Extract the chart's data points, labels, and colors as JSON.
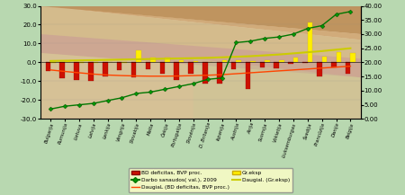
{
  "countries": [
    "Bulgarija",
    "Rumunija",
    "Lietuva",
    "Latvija",
    "Lenkija",
    "Vengrija",
    "Slovakija",
    "Malta",
    "Čekija",
    "Portugalija",
    "Slovėnija",
    "D. Britanija",
    "Ispanija",
    "Austrija",
    "Airija",
    "Suomija",
    "Vokietija",
    "Liuksemburgas",
    "Švedija",
    "Prancūzija",
    "Danija",
    "Belgija"
  ],
  "bd_deficit": [
    -4.7,
    -8.3,
    -9.1,
    -9.7,
    -7.2,
    -4.0,
    -7.9,
    -3.8,
    -5.9,
    -9.3,
    -5.8,
    -11.4,
    -11.1,
    -3.5,
    -14.3,
    -2.5,
    -3.0,
    -0.7,
    -0.5,
    -7.5,
    -2.7,
    -5.9
  ],
  "gr_eksp": [
    -0.5,
    0.5,
    -0.3,
    -0.3,
    0.3,
    -0.5,
    6.5,
    2.5,
    2.5,
    1.2,
    0.8,
    0.3,
    1.2,
    1.2,
    0.8,
    1.2,
    1.2,
    2.5,
    21.0,
    3.0,
    5.5,
    5.0
  ],
  "labor_costs": [
    3.5,
    4.5,
    5.0,
    5.5,
    6.5,
    7.5,
    9.0,
    9.5,
    10.5,
    11.5,
    12.5,
    14.0,
    14.5,
    27.0,
    27.5,
    28.5,
    29.0,
    30.0,
    32.0,
    33.0,
    37.0,
    38.0
  ],
  "gr_eksp_trend": [
    20.5,
    20.6,
    20.7,
    20.8,
    20.9,
    21.0,
    21.1,
    21.2,
    21.3,
    21.4,
    21.5,
    21.6,
    21.8,
    22.0,
    22.2,
    22.5,
    22.8,
    23.2,
    23.6,
    24.0,
    24.5,
    25.0
  ],
  "bd_trend": [
    -4.0,
    -4.8,
    -5.5,
    -6.2,
    -6.7,
    -7.0,
    -7.2,
    -7.3,
    -7.3,
    -7.2,
    -7.0,
    -6.8,
    -6.5,
    -6.0,
    -5.5,
    -5.0,
    -4.5,
    -4.0,
    -3.5,
    -3.0,
    -2.5,
    -2.0
  ],
  "ylim_left": [
    -30.0,
    30.0
  ],
  "ylim_right": [
    0.0,
    40.0
  ],
  "yticks_left": [
    -30.0,
    -20.0,
    -10.0,
    0.0,
    10.0,
    20.0,
    30.0
  ],
  "yticks_right": [
    0.0,
    5.0,
    10.0,
    15.0,
    20.0,
    25.0,
    30.0,
    35.0,
    40.0
  ],
  "bar_width": 0.35,
  "outer_bg": "#b8d8b0",
  "legend_bg": "#ffffc8",
  "legend_labels": [
    "BD deficitas, BVP proc.",
    "Darbo sanaudos( val.), 2009",
    "DaugiаL (BD deficitas, BVP proc.)",
    "Gr.eksp",
    "Daugial. (Gr.eksp)"
  ]
}
